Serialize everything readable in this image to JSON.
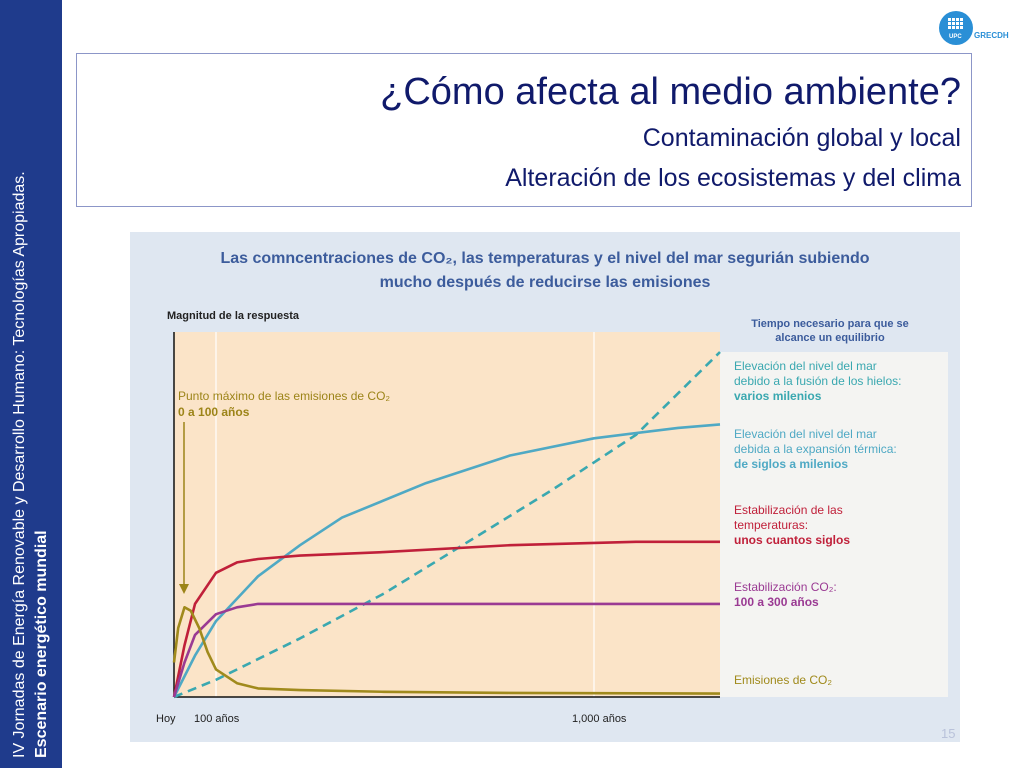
{
  "sidebar": {
    "line1": "IV Jornadas de Energía Renovable y Desarrollo Humano: Tecnologías Apropiadas.",
    "line2": "Escenario energético mundial"
  },
  "logo": {
    "mark": "UPC",
    "text": "GRECDH"
  },
  "slide": {
    "title": "¿Cómo afecta al medio ambiente?",
    "subtitle1": "Contaminación global y local",
    "subtitle2": "Alteración de los ecosistemas y del clima",
    "page_number": "15"
  },
  "colors": {
    "sidebar_bg": "#1f3b8c",
    "title_text": "#101a6b",
    "chart_title_text": "#3c5c9c",
    "plot_bg": "#fbe4c8",
    "sea_level_melting": "#3aa8b0",
    "sea_level_thermal": "#4fa9c4",
    "temperature": "#c0203a",
    "co2_stabilization": "#9a3a93",
    "co2_emissions": "#a08a1c"
  },
  "chart_data": {
    "type": "line",
    "title_line1": "Las comncentraciones de CO₂, las temperaturas y el nivel del mar segurián subiendo",
    "title_line2": "mucho después de reducirse las emisiones",
    "ylabel": "Magnitud de la respuesta",
    "right_header": "Tiempo necesario para que se alcance un equilibrio",
    "x_ticks": [
      "Hoy",
      "100 años",
      "1,000 años"
    ],
    "xlim": [
      0,
      1300
    ],
    "ylim": [
      0,
      1
    ],
    "annotation_line1": "Punto máximo de las emisiones de CO₂",
    "annotation_line2": "0 a 100 años",
    "series": [
      {
        "key": "sea_level_melting",
        "style": "dashed",
        "label_lines": [
          "Elevación del nivel del mar",
          "debido a la fusión de los hielos:"
        ],
        "label_bold": "varios milenios",
        "x": [
          0,
          100,
          300,
          500,
          700,
          900,
          1100,
          1300
        ],
        "y": [
          0,
          0.05,
          0.17,
          0.3,
          0.45,
          0.6,
          0.76,
          1.0
        ]
      },
      {
        "key": "sea_level_thermal",
        "style": "solid",
        "label_lines": [
          "Elevación del nivel del mar",
          "debida a la expansión térmica:"
        ],
        "label_bold": "de siglos a milenios",
        "x": [
          0,
          50,
          100,
          200,
          300,
          400,
          600,
          800,
          1000,
          1200,
          1300
        ],
        "y": [
          0,
          0.12,
          0.22,
          0.35,
          0.44,
          0.52,
          0.62,
          0.7,
          0.75,
          0.78,
          0.79
        ]
      },
      {
        "key": "temperature",
        "style": "solid",
        "label_lines": [
          "Estabilización de las",
          "temperaturas:"
        ],
        "label_bold": "unos cuantos siglos",
        "x": [
          0,
          25,
          50,
          100,
          150,
          200,
          300,
          500,
          800,
          1100,
          1300
        ],
        "y": [
          0,
          0.15,
          0.27,
          0.36,
          0.39,
          0.4,
          0.41,
          0.42,
          0.44,
          0.45,
          0.45
        ]
      },
      {
        "key": "co2_stabilization",
        "style": "solid",
        "label_lines": [
          "Estabilización CO₂:"
        ],
        "label_bold": "100 a 300 años",
        "x": [
          0,
          25,
          50,
          100,
          150,
          200,
          300,
          600,
          1000,
          1300
        ],
        "y": [
          0,
          0.1,
          0.18,
          0.24,
          0.26,
          0.27,
          0.27,
          0.27,
          0.27,
          0.27
        ]
      },
      {
        "key": "co2_emissions",
        "style": "solid",
        "label_lines": [
          "Emisiones de CO₂"
        ],
        "label_bold": "",
        "x": [
          0,
          10,
          25,
          40,
          60,
          80,
          100,
          150,
          200,
          300,
          500,
          800,
          1300
        ],
        "y": [
          0.1,
          0.2,
          0.26,
          0.25,
          0.2,
          0.13,
          0.08,
          0.04,
          0.025,
          0.02,
          0.015,
          0.012,
          0.01
        ]
      }
    ]
  }
}
